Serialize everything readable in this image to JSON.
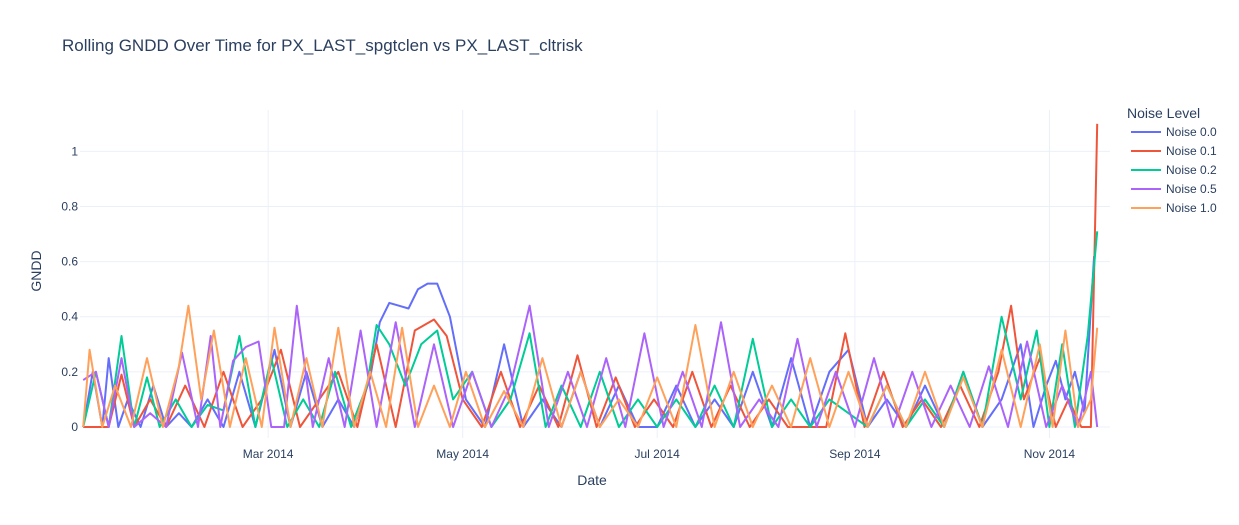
{
  "chart_data": {
    "type": "line",
    "title": "Rolling GNDD Over Time for PX_LAST_spgtclen vs PX_LAST_cltrisk",
    "xlabel": "Date",
    "ylabel": "GNDD",
    "xlim": [
      "2014-01-01",
      "2014-11-20"
    ],
    "ylim": [
      -0.04,
      1.15
    ],
    "x_ticks": [
      {
        "date": "2014-03-01",
        "label": "Mar 2014"
      },
      {
        "date": "2014-05-01",
        "label": "May 2014"
      },
      {
        "date": "2014-07-01",
        "label": "Jul 2014"
      },
      {
        "date": "2014-09-01",
        "label": "Sep 2014"
      },
      {
        "date": "2014-11-01",
        "label": "Nov 2014"
      }
    ],
    "y_ticks": [
      {
        "value": 0,
        "label": "0"
      },
      {
        "value": 0.2,
        "label": "0.2"
      },
      {
        "value": 0.4,
        "label": "0.4"
      },
      {
        "value": 0.6,
        "label": "0.6"
      },
      {
        "value": 0.8,
        "label": "0.8"
      },
      {
        "value": 1,
        "label": "1"
      }
    ],
    "grid": true,
    "legend": {
      "title": "Noise Level",
      "placement": "top-right"
    },
    "series": [
      {
        "name": "Noise 0.0",
        "color": "#636efa",
        "x": [
          "2014-01-02",
          "2014-01-05",
          "2014-01-08",
          "2014-01-10",
          "2014-01-13",
          "2014-01-16",
          "2014-01-20",
          "2014-01-24",
          "2014-01-28",
          "2014-02-01",
          "2014-02-05",
          "2014-02-10",
          "2014-02-15",
          "2014-02-20",
          "2014-02-25",
          "2014-03-03",
          "2014-03-08",
          "2014-03-13",
          "2014-03-18",
          "2014-03-23",
          "2014-03-28",
          "2014-04-02",
          "2014-04-05",
          "2014-04-08",
          "2014-04-11",
          "2014-04-14",
          "2014-04-17",
          "2014-04-20",
          "2014-04-23",
          "2014-04-27",
          "2014-05-02",
          "2014-05-08",
          "2014-05-14",
          "2014-05-20",
          "2014-05-26",
          "2014-06-01",
          "2014-06-07",
          "2014-06-13",
          "2014-06-19",
          "2014-06-25",
          "2014-07-01",
          "2014-07-07",
          "2014-07-13",
          "2014-07-19",
          "2014-07-25",
          "2014-07-31",
          "2014-08-06",
          "2014-08-12",
          "2014-08-18",
          "2014-08-24",
          "2014-08-30",
          "2014-09-05",
          "2014-09-11",
          "2014-09-17",
          "2014-09-23",
          "2014-09-29",
          "2014-10-05",
          "2014-10-11",
          "2014-10-17",
          "2014-10-23",
          "2014-10-27",
          "2014-10-31",
          "2014-11-03",
          "2014-11-06",
          "2014-11-09",
          "2014-11-12",
          "2014-11-15"
        ],
        "values": [
          0.0,
          0.2,
          0.0,
          0.25,
          0.0,
          0.1,
          0.0,
          0.15,
          0.0,
          0.05,
          0.0,
          0.1,
          0.0,
          0.2,
          0.0,
          0.28,
          0.0,
          0.2,
          0.0,
          0.1,
          0.0,
          0.18,
          0.38,
          0.45,
          0.44,
          0.43,
          0.5,
          0.52,
          0.52,
          0.4,
          0.1,
          0.0,
          0.3,
          0.0,
          0.1,
          0.0,
          0.2,
          0.0,
          0.15,
          0.0,
          0.0,
          0.15,
          0.0,
          0.1,
          0.0,
          0.2,
          0.0,
          0.25,
          0.0,
          0.2,
          0.28,
          0.0,
          0.1,
          0.0,
          0.15,
          0.0,
          0.2,
          0.0,
          0.1,
          0.3,
          0.0,
          0.15,
          0.24,
          0.1,
          0.2,
          0.05,
          0.62
        ]
      },
      {
        "name": "Noise 0.1",
        "color": "#ef553b",
        "x": [
          "2014-01-02",
          "2014-01-06",
          "2014-01-10",
          "2014-01-14",
          "2014-01-18",
          "2014-01-23",
          "2014-01-28",
          "2014-02-03",
          "2014-02-09",
          "2014-02-15",
          "2014-02-21",
          "2014-02-27",
          "2014-03-05",
          "2014-03-11",
          "2014-03-17",
          "2014-03-23",
          "2014-03-29",
          "2014-04-04",
          "2014-04-10",
          "2014-04-16",
          "2014-04-22",
          "2014-04-26",
          "2014-05-01",
          "2014-05-07",
          "2014-05-13",
          "2014-05-19",
          "2014-05-25",
          "2014-05-31",
          "2014-06-06",
          "2014-06-12",
          "2014-06-18",
          "2014-06-24",
          "2014-06-30",
          "2014-07-06",
          "2014-07-12",
          "2014-07-18",
          "2014-07-24",
          "2014-07-30",
          "2014-08-05",
          "2014-08-11",
          "2014-08-17",
          "2014-08-23",
          "2014-08-29",
          "2014-09-04",
          "2014-09-10",
          "2014-09-16",
          "2014-09-22",
          "2014-09-28",
          "2014-10-04",
          "2014-10-10",
          "2014-10-16",
          "2014-10-20",
          "2014-10-24",
          "2014-10-29",
          "2014-11-03",
          "2014-11-07",
          "2014-11-11",
          "2014-11-14",
          "2014-11-16"
        ],
        "values": [
          0.0,
          0.0,
          0.0,
          0.19,
          0.0,
          0.1,
          0.0,
          0.15,
          0.0,
          0.2,
          0.0,
          0.1,
          0.28,
          0.0,
          0.1,
          0.2,
          0.0,
          0.3,
          0.0,
          0.35,
          0.39,
          0.33,
          0.1,
          0.0,
          0.2,
          0.0,
          0.15,
          0.0,
          0.26,
          0.0,
          0.18,
          0.0,
          0.1,
          0.0,
          0.2,
          0.0,
          0.15,
          0.0,
          0.1,
          0.0,
          0.0,
          0.0,
          0.34,
          0.0,
          0.2,
          0.0,
          0.1,
          0.0,
          0.15,
          0.0,
          0.2,
          0.44,
          0.1,
          0.25,
          0.0,
          0.1,
          0.0,
          0.0,
          1.1
        ]
      },
      {
        "name": "Noise 0.2",
        "color": "#00cc96",
        "x": [
          "2014-01-02",
          "2014-01-06",
          "2014-01-10",
          "2014-01-14",
          "2014-01-18",
          "2014-01-22",
          "2014-01-26",
          "2014-01-31",
          "2014-02-05",
          "2014-02-10",
          "2014-02-15",
          "2014-02-20",
          "2014-02-25",
          "2014-03-02",
          "2014-03-07",
          "2014-03-12",
          "2014-03-17",
          "2014-03-22",
          "2014-03-27",
          "2014-04-01",
          "2014-04-04",
          "2014-04-08",
          "2014-04-13",
          "2014-04-18",
          "2014-04-23",
          "2014-04-28",
          "2014-05-04",
          "2014-05-10",
          "2014-05-16",
          "2014-05-22",
          "2014-05-27",
          "2014-06-01",
          "2014-06-07",
          "2014-06-13",
          "2014-06-19",
          "2014-06-25",
          "2014-07-01",
          "2014-07-07",
          "2014-07-13",
          "2014-07-19",
          "2014-07-25",
          "2014-07-31",
          "2014-08-06",
          "2014-08-12",
          "2014-08-18",
          "2014-08-24",
          "2014-08-30",
          "2014-09-05",
          "2014-09-11",
          "2014-09-17",
          "2014-09-23",
          "2014-09-29",
          "2014-10-05",
          "2014-10-11",
          "2014-10-17",
          "2014-10-23",
          "2014-10-28",
          "2014-11-01",
          "2014-11-05",
          "2014-11-09",
          "2014-11-13",
          "2014-11-16"
        ],
        "values": [
          0.0,
          0.2,
          0.0,
          0.33,
          0.0,
          0.18,
          0.0,
          0.1,
          0.0,
          0.08,
          0.06,
          0.33,
          0.0,
          0.25,
          0.0,
          0.1,
          0.0,
          0.2,
          0.0,
          0.15,
          0.37,
          0.3,
          0.15,
          0.3,
          0.35,
          0.1,
          0.2,
          0.0,
          0.1,
          0.34,
          0.0,
          0.15,
          0.0,
          0.2,
          0.0,
          0.1,
          0.0,
          0.1,
          0.0,
          0.15,
          0.0,
          0.32,
          0.0,
          0.1,
          0.0,
          0.1,
          0.05,
          0.0,
          0.15,
          0.0,
          0.1,
          0.0,
          0.2,
          0.0,
          0.4,
          0.1,
          0.35,
          0.0,
          0.3,
          0.0,
          0.33,
          0.71
        ]
      },
      {
        "name": "Noise 0.5",
        "color": "#ab63fa",
        "x": [
          "2014-01-02",
          "2014-01-06",
          "2014-01-10",
          "2014-01-14",
          "2014-01-18",
          "2014-01-23",
          "2014-01-28",
          "2014-02-02",
          "2014-02-07",
          "2014-02-11",
          "2014-02-14",
          "2014-02-18",
          "2014-02-22",
          "2014-02-26",
          "2014-03-02",
          "2014-03-06",
          "2014-03-10",
          "2014-03-15",
          "2014-03-20",
          "2014-03-25",
          "2014-03-30",
          "2014-04-04",
          "2014-04-10",
          "2014-04-16",
          "2014-04-22",
          "2014-04-28",
          "2014-05-04",
          "2014-05-10",
          "2014-05-16",
          "2014-05-22",
          "2014-05-28",
          "2014-06-03",
          "2014-06-09",
          "2014-06-15",
          "2014-06-21",
          "2014-06-27",
          "2014-07-03",
          "2014-07-09",
          "2014-07-15",
          "2014-07-21",
          "2014-07-27",
          "2014-08-02",
          "2014-08-08",
          "2014-08-14",
          "2014-08-20",
          "2014-08-26",
          "2014-09-01",
          "2014-09-07",
          "2014-09-13",
          "2014-09-19",
          "2014-09-25",
          "2014-10-01",
          "2014-10-07",
          "2014-10-13",
          "2014-10-19",
          "2014-10-25",
          "2014-10-31",
          "2014-11-05",
          "2014-11-10",
          "2014-11-14",
          "2014-11-16"
        ],
        "values": [
          0.17,
          0.2,
          0.0,
          0.25,
          0.0,
          0.05,
          0.0,
          0.27,
          0.0,
          0.33,
          0.0,
          0.24,
          0.29,
          0.31,
          0.0,
          0.0,
          0.44,
          0.0,
          0.25,
          0.0,
          0.35,
          0.0,
          0.38,
          0.0,
          0.3,
          0.0,
          0.2,
          0.0,
          0.15,
          0.44,
          0.0,
          0.2,
          0.0,
          0.25,
          0.0,
          0.34,
          0.0,
          0.2,
          0.0,
          0.38,
          0.0,
          0.1,
          0.0,
          0.32,
          0.0,
          0.2,
          0.0,
          0.25,
          0.0,
          0.2,
          0.0,
          0.15,
          0.0,
          0.22,
          0.0,
          0.31,
          0.0,
          0.15,
          0.0,
          0.2,
          0.0
        ]
      },
      {
        "name": "Noise 1.0",
        "color": "#ffa15a",
        "x": [
          "2014-01-02",
          "2014-01-04",
          "2014-01-08",
          "2014-01-12",
          "2014-01-17",
          "2014-01-22",
          "2014-01-27",
          "2014-02-01",
          "2014-02-04",
          "2014-02-08",
          "2014-02-12",
          "2014-02-17",
          "2014-02-22",
          "2014-02-27",
          "2014-03-03",
          "2014-03-08",
          "2014-03-13",
          "2014-03-18",
          "2014-03-23",
          "2014-03-28",
          "2014-04-02",
          "2014-04-07",
          "2014-04-12",
          "2014-04-17",
          "2014-04-22",
          "2014-04-27",
          "2014-05-02",
          "2014-05-08",
          "2014-05-14",
          "2014-05-20",
          "2014-05-26",
          "2014-06-01",
          "2014-06-07",
          "2014-06-13",
          "2014-06-19",
          "2014-06-25",
          "2014-07-01",
          "2014-07-07",
          "2014-07-13",
          "2014-07-19",
          "2014-07-25",
          "2014-07-31",
          "2014-08-06",
          "2014-08-12",
          "2014-08-18",
          "2014-08-24",
          "2014-08-30",
          "2014-09-05",
          "2014-09-11",
          "2014-09-17",
          "2014-09-23",
          "2014-09-29",
          "2014-10-05",
          "2014-10-11",
          "2014-10-17",
          "2014-10-23",
          "2014-10-29",
          "2014-11-02",
          "2014-11-06",
          "2014-11-10",
          "2014-11-14",
          "2014-11-16"
        ],
        "values": [
          0.0,
          0.28,
          0.0,
          0.15,
          0.0,
          0.25,
          0.0,
          0.22,
          0.44,
          0.1,
          0.35,
          0.0,
          0.25,
          0.0,
          0.36,
          0.0,
          0.25,
          0.0,
          0.36,
          0.0,
          0.2,
          0.0,
          0.36,
          0.0,
          0.15,
          0.0,
          0.2,
          0.0,
          0.13,
          0.0,
          0.25,
          0.0,
          0.2,
          0.0,
          0.1,
          0.0,
          0.18,
          0.0,
          0.37,
          0.0,
          0.2,
          0.0,
          0.15,
          0.0,
          0.25,
          0.0,
          0.2,
          0.0,
          0.15,
          0.0,
          0.2,
          0.0,
          0.18,
          0.0,
          0.28,
          0.0,
          0.3,
          0.0,
          0.35,
          0.0,
          0.1,
          0.36
        ]
      }
    ]
  }
}
